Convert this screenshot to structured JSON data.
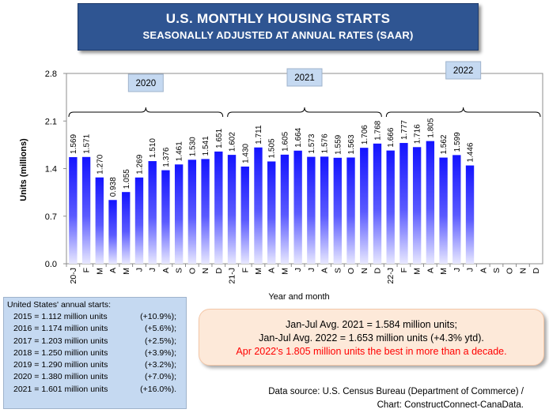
{
  "title": "U.S. MONTHLY HOUSING STARTS",
  "subtitle": "SEASONALLY ADJUSTED AT ANNUAL RATES (SAAR)",
  "chart_data": {
    "type": "bar",
    "ylabel": "Units (millions)",
    "xlabel": "Year and month",
    "ylim": [
      0,
      2.8
    ],
    "yticks": [
      "0.0",
      "0.7",
      "1.4",
      "2.1",
      "2.8"
    ],
    "categories": [
      "20-J",
      "F",
      "M",
      "A",
      "M",
      "J",
      "J",
      "A",
      "S",
      "O",
      "N",
      "D",
      "21-J",
      "F",
      "M",
      "A",
      "M",
      "J",
      "J",
      "A",
      "S",
      "O",
      "N",
      "D",
      "22-J",
      "F",
      "M",
      "A",
      "M",
      "J",
      "J",
      "A",
      "S",
      "O",
      "N",
      "D"
    ],
    "values": [
      1.569,
      1.571,
      1.27,
      0.938,
      1.055,
      1.269,
      1.51,
      1.376,
      1.461,
      1.53,
      1.541,
      1.651,
      1.602,
      1.43,
      1.711,
      1.505,
      1.605,
      1.664,
      1.573,
      1.576,
      1.559,
      1.563,
      1.706,
      1.768,
      1.666,
      1.777,
      1.716,
      1.805,
      1.562,
      1.599,
      1.446,
      null,
      null,
      null,
      null,
      null
    ],
    "labels": [
      "1.569",
      "1.571",
      "1.270",
      "0.938",
      "1.055",
      "1.269",
      "1.510",
      "1.376",
      "1.461",
      "1.530",
      "1.541",
      "1.651",
      "1.602",
      "1.430",
      "1.711",
      "1.505",
      "1.605",
      "1.664",
      "1.573",
      "1.576",
      "1.559",
      "1.563",
      "1.706",
      "1.768",
      "1.666",
      "1.777",
      "1.716",
      "1.805",
      "1.562",
      "1.599",
      "1.446",
      "",
      "",
      "",
      "",
      ""
    ],
    "year_groups": [
      {
        "label": "2020",
        "start": 0,
        "end": 11
      },
      {
        "label": "2021",
        "start": 12,
        "end": 23
      },
      {
        "label": "2022",
        "start": 24,
        "end": 35
      }
    ],
    "bar_color": "#1a1aff",
    "grid": false
  },
  "annual": {
    "header": "United States' annual starts:",
    "rows": [
      {
        "year": "2015 = 1.112 million units",
        "change": "(+10.9%);"
      },
      {
        "year": "2016 = 1.174 million units",
        "change": "(+5.6%);"
      },
      {
        "year": "2017 = 1.203 million units",
        "change": "(+2.5%);"
      },
      {
        "year": "2018 = 1.250 million units",
        "change": "(+3.9%);"
      },
      {
        "year": "2019 = 1.290 million units",
        "change": "(+3.2%);"
      },
      {
        "year": "2020 = 1.380 million units",
        "change": "(+7.0%);"
      },
      {
        "year": "2021 = 1.601 million units",
        "change": "(+16.0%)."
      }
    ]
  },
  "averages": {
    "line1": "Jan-Jul Avg. 2021 = 1.584 million units;",
    "line2": "Jan-Jul Avg. 2022 = 1.653 million units (+4.3% ytd).",
    "line3": "Apr 2022's 1.805 million units the best in more than a decade."
  },
  "source": {
    "line1": "Data source: U.S. Census Bureau (Department of Commerce) /",
    "line2": "Chart: ConstructConnect-CanaData."
  }
}
